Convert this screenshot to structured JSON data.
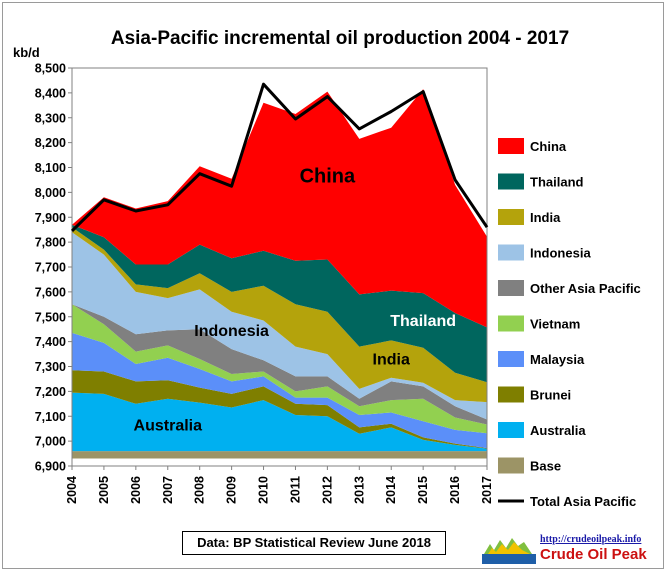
{
  "chart_data": {
    "type": "area",
    "title": "Asia-Pacific incremental oil production 2004 - 2017",
    "ylabel": "kb/d",
    "xlabel": "",
    "ylim": [
      6900,
      8500
    ],
    "yticks": [
      6900,
      7000,
      7100,
      7200,
      7300,
      7400,
      7500,
      7600,
      7700,
      7800,
      7900,
      8000,
      8100,
      8200,
      8300,
      8400,
      8500
    ],
    "ytick_labels": [
      "6,900",
      "7,000",
      "7,100",
      "7,200",
      "7,300",
      "7,400",
      "7,500",
      "7,600",
      "7,700",
      "7,800",
      "7,900",
      "8,000",
      "8,100",
      "8,200",
      "8,300",
      "8,400",
      "8,500"
    ],
    "x": [
      "2004",
      "2005",
      "2006",
      "2007",
      "2008",
      "2009",
      "2010",
      "2011",
      "2012",
      "2013",
      "2014",
      "2015",
      "2016",
      "2017"
    ],
    "baseline": 6930,
    "legend_position": "right",
    "series": [
      {
        "name": "Base",
        "color": "#9c9466",
        "values": [
          30,
          30,
          30,
          30,
          30,
          30,
          30,
          30,
          30,
          30,
          30,
          30,
          30,
          30
        ]
      },
      {
        "name": "Australia",
        "color": "#00b0f0",
        "values": [
          235,
          230,
          190,
          210,
          195,
          175,
          205,
          145,
          140,
          70,
          95,
          45,
          25,
          10
        ]
      },
      {
        "name": "Brunei",
        "color": "#7f7f00",
        "values": [
          90,
          90,
          90,
          75,
          60,
          55,
          55,
          45,
          45,
          25,
          15,
          10,
          5,
          2
        ]
      },
      {
        "name": "Malaysia",
        "color": "#5b8ff9",
        "values": [
          150,
          115,
          70,
          90,
          75,
          50,
          40,
          25,
          30,
          50,
          45,
          65,
          55,
          60
        ]
      },
      {
        "name": "Vietnam",
        "color": "#92d050",
        "values": [
          115,
          75,
          50,
          50,
          40,
          30,
          20,
          25,
          45,
          35,
          50,
          90,
          50,
          35
        ]
      },
      {
        "name": "Other Asia Pacific",
        "color": "#808080",
        "values": [
          0,
          30,
          70,
          60,
          120,
          100,
          45,
          60,
          40,
          30,
          75,
          50,
          45,
          20
        ]
      },
      {
        "name": "Indonesia",
        "color": "#9dc3e6",
        "values": [
          290,
          250,
          170,
          130,
          160,
          150,
          160,
          120,
          90,
          40,
          15,
          15,
          25,
          70
        ]
      },
      {
        "name": "India",
        "color": "#b4a30c",
        "values": [
          20,
          20,
          30,
          40,
          65,
          80,
          140,
          170,
          170,
          170,
          150,
          140,
          110,
          80
        ]
      },
      {
        "name": "Thailand",
        "color": "#00665e",
        "values": [
          10,
          50,
          80,
          95,
          115,
          135,
          140,
          175,
          210,
          210,
          200,
          220,
          240,
          220
        ]
      },
      {
        "name": "China",
        "color": "#ff0000",
        "values": [
          0,
          160,
          225,
          255,
          315,
          320,
          595,
          590,
          675,
          625,
          655,
          820,
          515,
          365
        ]
      }
    ],
    "total_series": {
      "name": "Total Asia Pacific",
      "color": "#000000",
      "values": [
        7845,
        7970,
        7925,
        7950,
        8075,
        8025,
        8435,
        8295,
        8385,
        8255,
        8325,
        8405,
        8050,
        7860
      ]
    },
    "annotations": [
      {
        "text": "China",
        "series": "China",
        "year": "2012"
      },
      {
        "text": "Thailand",
        "series": "Thailand",
        "year": "2015"
      },
      {
        "text": "India",
        "series": "India",
        "year": "2014"
      },
      {
        "text": "Indonesia",
        "series": "Indonesia",
        "year": "2009"
      },
      {
        "text": "Australia",
        "series": "Australia",
        "year": "2007"
      }
    ],
    "legend_order": [
      "China",
      "Thailand",
      "India",
      "Indonesia",
      "Other Asia Pacific",
      "Vietnam",
      "Malaysia",
      "Brunei",
      "Australia",
      "Base",
      "Total Asia Pacific"
    ]
  },
  "source_note": "Data: BP Statistical Review  June 2018",
  "logo": {
    "url": "http://crudeoilpeak.info",
    "name": "Crude Oil Peak"
  }
}
